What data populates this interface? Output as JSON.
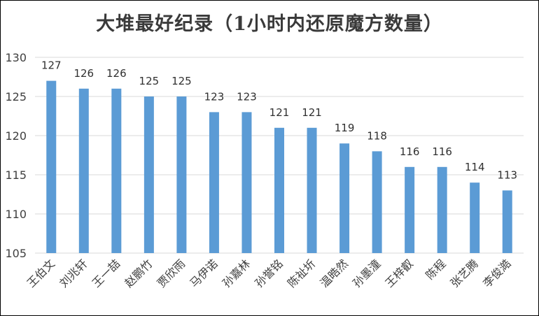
{
  "chart_data": {
    "type": "bar",
    "title": "大堆最好纪录（1小时内还原魔方数量）",
    "categories": [
      "王伯文",
      "刘兆轩",
      "王一喆",
      "赵鹏竹",
      "贾欣雨",
      "马伊诺",
      "孙嘉林",
      "孙誉铭",
      "陈祉圻",
      "温晧然",
      "孙墨潼",
      "王梓叡",
      "陈程",
      "张艺腾",
      "李俊澔"
    ],
    "values": [
      127,
      126,
      126,
      125,
      125,
      123,
      123,
      121,
      121,
      119,
      118,
      116,
      116,
      114,
      113
    ],
    "ylim": [
      105,
      130
    ],
    "yticks": [
      105,
      110,
      115,
      120,
      125,
      130
    ],
    "xlabel": "",
    "ylabel": "",
    "grid": true,
    "legend": "none",
    "bar_color": "#5b9bd5",
    "grid_color": "#d9d9d9"
  }
}
